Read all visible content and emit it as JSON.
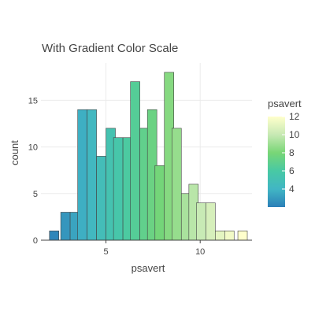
{
  "chart_data": {
    "type": "bar",
    "title": "With Gradient Color Scale",
    "xlabel": "psavert",
    "ylabel": "count",
    "xlim": [
      1.55,
      12.75
    ],
    "ylim": [
      0,
      19
    ],
    "x_ticks": [
      5,
      10
    ],
    "y_ticks": [
      0,
      5,
      10,
      15
    ],
    "bin_width": 0.5,
    "bins": [
      {
        "x0": 2.0,
        "count": 1
      },
      {
        "x0": 2.5,
        "count": 0
      },
      {
        "x0": 2.6,
        "count": 3
      },
      {
        "x0": 3.1,
        "count": 3
      },
      {
        "x0": 3.5,
        "count": 14
      },
      {
        "x0": 4.0,
        "count": 14
      },
      {
        "x0": 4.5,
        "count": 9
      },
      {
        "x0": 5.0,
        "count": 12
      },
      {
        "x0": 5.4,
        "count": 11
      },
      {
        "x0": 5.9,
        "count": 11
      },
      {
        "x0": 6.3,
        "count": 17
      },
      {
        "x0": 6.8,
        "count": 12
      },
      {
        "x0": 7.2,
        "count": 14
      },
      {
        "x0": 7.6,
        "count": 8
      },
      {
        "x0": 8.1,
        "count": 18
      },
      {
        "x0": 8.5,
        "count": 12
      },
      {
        "x0": 9.0,
        "count": 5
      },
      {
        "x0": 9.4,
        "count": 6
      },
      {
        "x0": 9.8,
        "count": 4
      },
      {
        "x0": 10.3,
        "count": 4
      },
      {
        "x0": 10.8,
        "count": 1
      },
      {
        "x0": 11.3,
        "count": 1
      },
      {
        "x0": 12.0,
        "count": 1
      }
    ],
    "grid": true,
    "legend_placement": "right",
    "colorbar": {
      "title": "psavert",
      "range": [
        2.0,
        12.0
      ],
      "ticks": [
        4,
        6,
        8,
        10,
        12
      ],
      "colors": [
        "#2c7fb8",
        "#41b6c4",
        "#7fcdbb",
        "#78d676",
        "#c7e9b4",
        "#ffffcc"
      ]
    }
  }
}
